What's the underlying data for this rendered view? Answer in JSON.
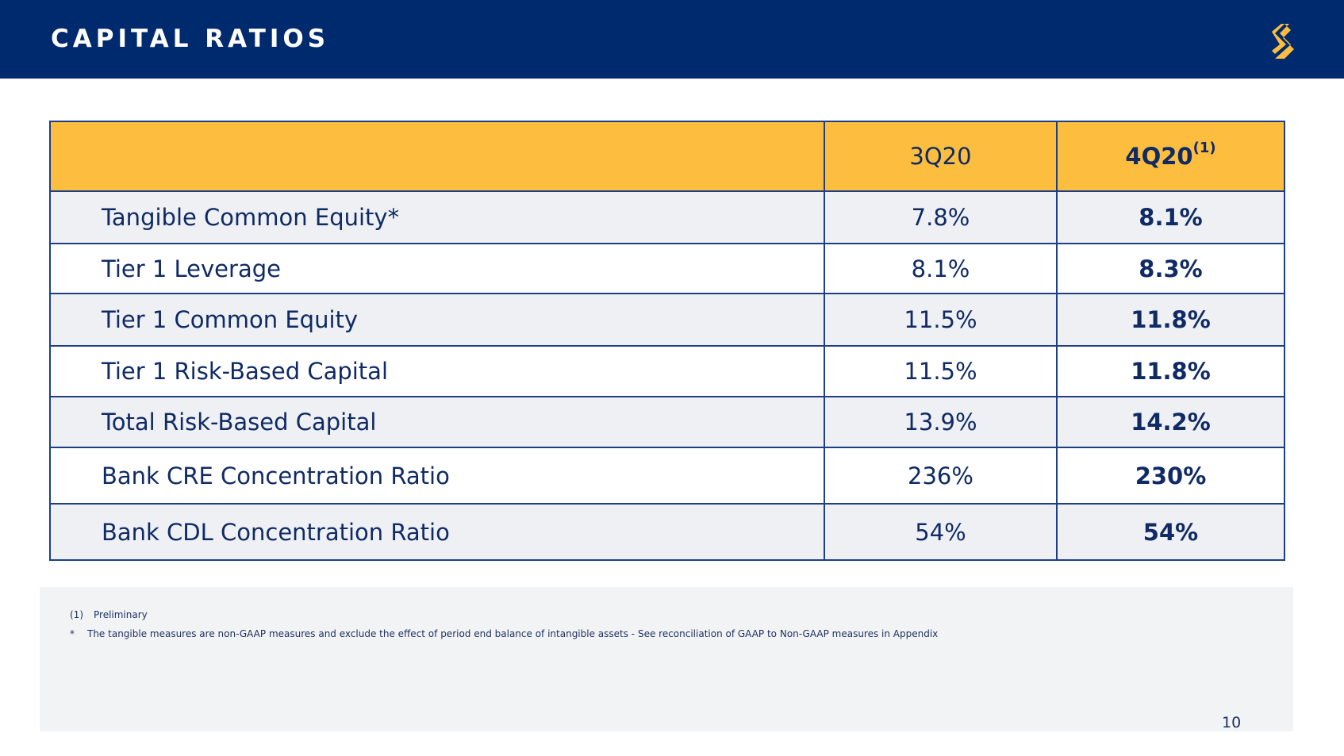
{
  "header": {
    "title": "CAPITAL RATIOS",
    "logo_icon": "s-stripes-logo",
    "background_color": "#002a6e",
    "logo_color": "#fdbe3f"
  },
  "table": {
    "header_color": "#fdbe3f",
    "columns": {
      "label": "",
      "col_3q20": "3Q20",
      "col_4q20": "4Q20",
      "col_4q20_footnote": "(1)"
    },
    "rows": [
      {
        "label": "Tangible Common Equity*",
        "q3": "7.8%",
        "q4": "8.1%"
      },
      {
        "label": "Tier 1 Leverage",
        "q3": "8.1%",
        "q4": "8.3%"
      },
      {
        "label": "Tier 1 Common Equity",
        "q3": "11.5%",
        "q4": "11.8%"
      },
      {
        "label": "Tier 1 Risk-Based Capital",
        "q3": "11.5%",
        "q4": "11.8%"
      },
      {
        "label": "Total Risk-Based Capital",
        "q3": "13.9%",
        "q4": "14.2%"
      },
      {
        "label": "Bank CRE Concentration Ratio",
        "q3": "236%",
        "q4": "230%"
      },
      {
        "label": "Bank CDL Concentration Ratio",
        "q3": "54%",
        "q4": "54%"
      }
    ]
  },
  "footnotes": [
    {
      "mark": "(1)",
      "text": "Preliminary"
    },
    {
      "mark": "*",
      "text": "The tangible measures are non-GAAP measures and exclude the effect of period end balance of intangible assets - See reconciliation of GAAP to Non-GAAP measures in Appendix"
    }
  ],
  "page_number": "10"
}
